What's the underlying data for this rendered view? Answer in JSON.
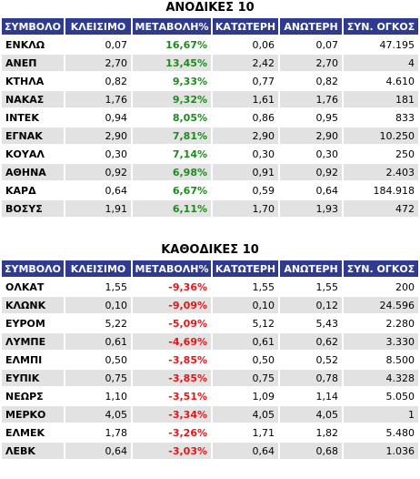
{
  "headers": [
    "ΣΥΜΒΟΛΟ",
    "ΚΛΕΙΣΙΜΟ",
    "ΜΕΤΑΒΟΛΗ%",
    "ΚΑΤΩΤΕΡΗ",
    "ΑΝΩΤΕΡΗ",
    "ΣΥΝ. ΟΓΚΟΣ"
  ],
  "gainers": {
    "title": "ΑΝΟΔΙΚΕΣ 10",
    "change_color": "#1e8a1e",
    "rows": [
      [
        "ΕΝΚΛΩ",
        "0,07",
        "16,67%",
        "0,06",
        "0,07",
        "47.195"
      ],
      [
        "ΑΝΕΠ",
        "2,70",
        "13,45%",
        "2,42",
        "2,70",
        "4"
      ],
      [
        "ΚΤΗΛΑ",
        "0,82",
        "9,33%",
        "0,77",
        "0,82",
        "4.610"
      ],
      [
        "ΝΑΚΑΣ",
        "1,76",
        "9,32%",
        "1,61",
        "1,76",
        "181"
      ],
      [
        "ΙΝΤΕΚ",
        "0,94",
        "8,05%",
        "0,86",
        "0,95",
        "833"
      ],
      [
        "ΕΓΝΑΚ",
        "2,90",
        "7,81%",
        "2,90",
        "2,90",
        "10.250"
      ],
      [
        "ΚΟΥΑΛ",
        "0,30",
        "7,14%",
        "0,30",
        "0,30",
        "250"
      ],
      [
        "ΑΘΗΝΑ",
        "0,92",
        "6,98%",
        "0,91",
        "0,92",
        "2.403"
      ],
      [
        "ΚΑΡΔ",
        "0,64",
        "6,67%",
        "0,59",
        "0,64",
        "184.918"
      ],
      [
        "ΒΟΣΥΣ",
        "1,91",
        "6,11%",
        "1,70",
        "1,93",
        "472"
      ]
    ]
  },
  "losers": {
    "title": "ΚΑΘΟΔΙΚΕΣ 10",
    "change_color": "#e01818",
    "rows": [
      [
        "ΟΛΚΑΤ",
        "1,55",
        "-9,36%",
        "1,55",
        "1,55",
        "200"
      ],
      [
        "ΚΛΩΝΚ",
        "0,10",
        "-9,09%",
        "0,10",
        "0,12",
        "24.596"
      ],
      [
        "ΕΥΡΟΜ",
        "5,22",
        "-5,09%",
        "5,12",
        "5,43",
        "2.280"
      ],
      [
        "ΛΥΜΠΕ",
        "0,61",
        "-4,69%",
        "0,61",
        "0,62",
        "3.330"
      ],
      [
        "ΕΛΜΠΙ",
        "0,50",
        "-3,85%",
        "0,50",
        "0,52",
        "8.500"
      ],
      [
        "ΕΥΠΙΚ",
        "0,75",
        "-3,85%",
        "0,75",
        "0,78",
        "4.328"
      ],
      [
        "ΝΕΩΡΣ",
        "1,10",
        "-3,51%",
        "1,09",
        "1,14",
        "5.050"
      ],
      [
        "ΜΕΡΚΟ",
        "4,05",
        "-3,34%",
        "4,05",
        "4,05",
        "1"
      ],
      [
        "ΕΛΜΕΚ",
        "1,78",
        "-3,26%",
        "1,71",
        "1,82",
        "5.480"
      ],
      [
        "ΛΕΒΚ",
        "0,64",
        "-3,03%",
        "0,64",
        "0,68",
        "1.036"
      ]
    ]
  }
}
